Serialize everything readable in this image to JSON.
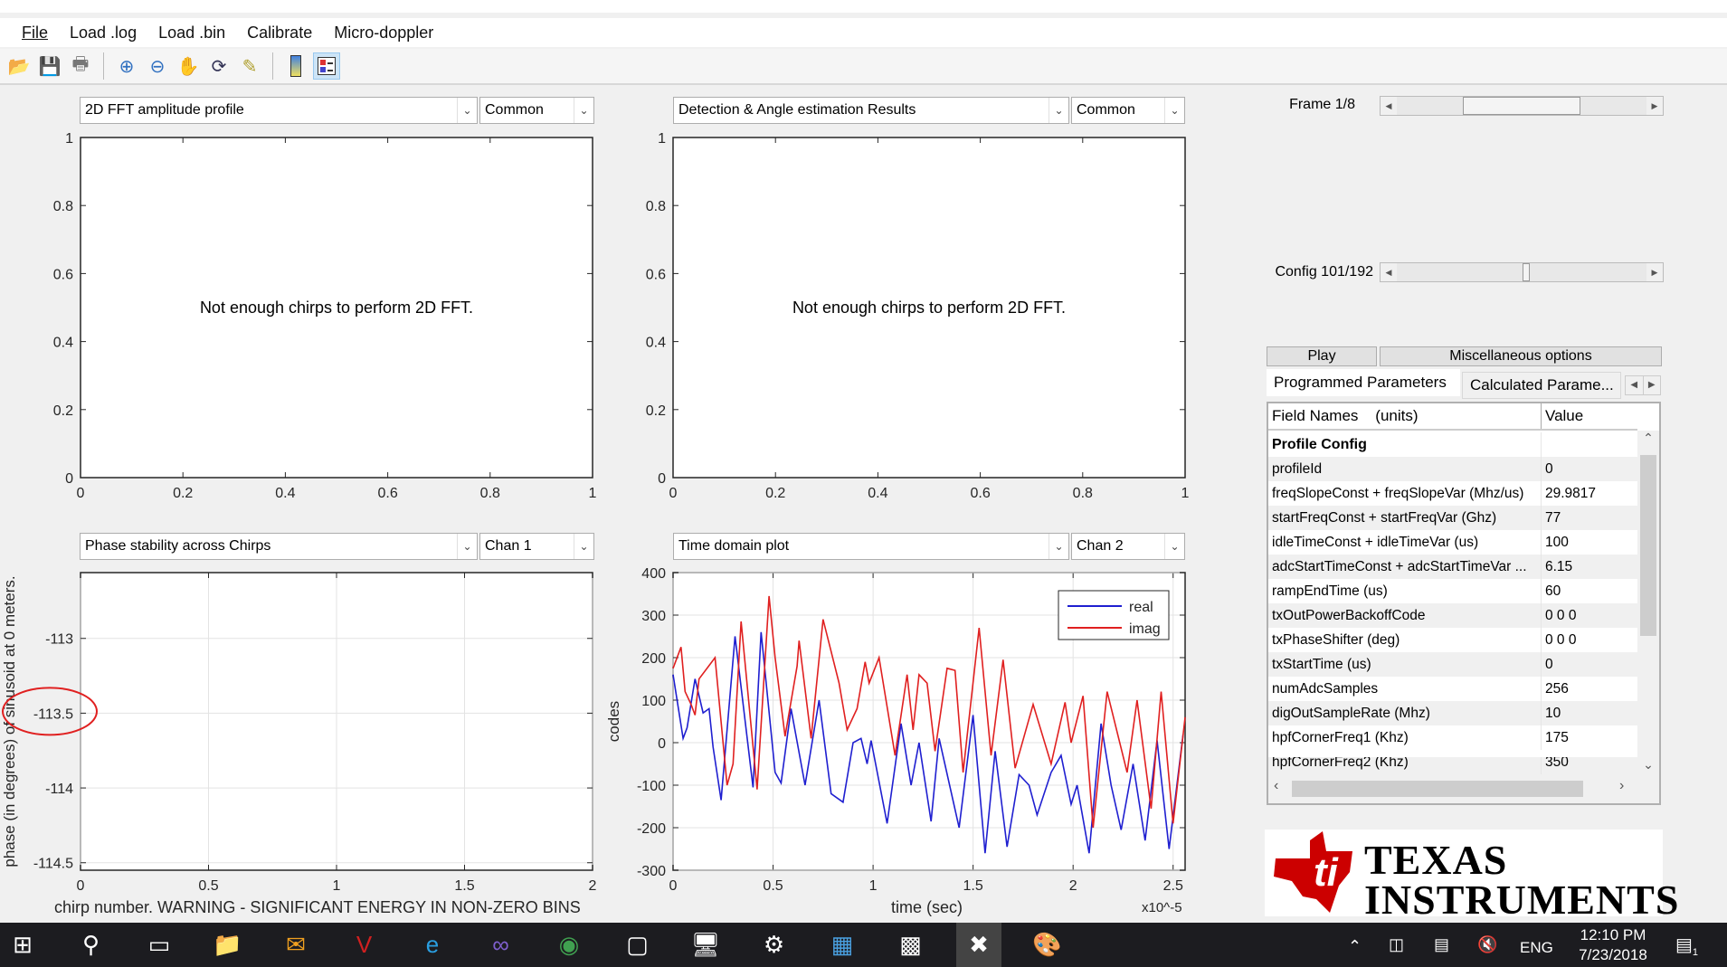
{
  "menu": [
    "File",
    "Load .log",
    "Load .bin",
    "Calibrate",
    "Micro-doppler"
  ],
  "toolbar": [
    "open-icon",
    "save-icon",
    "print-icon",
    "zoom-in-icon",
    "zoom-out-icon",
    "pan-icon",
    "rotate-icon",
    "data-cursor-icon",
    "colorbar-icon",
    "legend-icon"
  ],
  "plots": [
    {
      "select": "2D FFT amplitude profile",
      "option": "Common",
      "message": "Not enough chirps to perform 2D FFT."
    },
    {
      "select": "Detection & Angle estimation Results",
      "option": "Common",
      "message": "Not enough chirps to perform 2D FFT."
    },
    {
      "select": "Phase stability across Chirps",
      "option": "Chan 1"
    },
    {
      "select": "Time domain plot",
      "option": "Chan 2"
    }
  ],
  "chart_data": [
    {
      "type": "line",
      "xlim": [
        0,
        1
      ],
      "ylim": [
        0,
        1
      ],
      "xticks": [
        "0",
        "0.2",
        "0.4",
        "0.6",
        "0.8",
        "1"
      ],
      "yticks": [
        "0",
        "0.2",
        "0.4",
        "0.6",
        "0.8",
        "1"
      ],
      "grid": false,
      "series": []
    },
    {
      "type": "line",
      "xlim": [
        0,
        1
      ],
      "ylim": [
        0,
        1
      ],
      "xticks": [
        "0",
        "0.2",
        "0.4",
        "0.6",
        "0.8",
        "1"
      ],
      "yticks": [
        "0",
        "0.2",
        "0.4",
        "0.6",
        "0.8",
        "1"
      ],
      "grid": false,
      "series": []
    },
    {
      "type": "line",
      "xlim": [
        0,
        2
      ],
      "ylim": [
        -114.55,
        -112.56
      ],
      "xticks": [
        "0",
        "0.5",
        "1",
        "1.5",
        "2"
      ],
      "xtick_values": [
        0,
        0.5,
        1,
        1.5,
        2
      ],
      "yticks": [
        "-113",
        "-113.5",
        "-114",
        "-114.5"
      ],
      "ytick_values": [
        -113,
        -113.5,
        -114,
        -114.5
      ],
      "grid": true,
      "ylabel": "phase (in degrees) of sinusoid at 0 meters.",
      "xlabel": "chirp number. WARNING - SIGNIFICANT ENERGY IN NON-ZERO BINS",
      "series": [],
      "annotation_color": "#e02020"
    },
    {
      "type": "line",
      "xlim": [
        0,
        2.56
      ],
      "ylim": [
        -300,
        400
      ],
      "xticks": [
        "0",
        "0.5",
        "1",
        "1.5",
        "2",
        "2.5"
      ],
      "xtick_values": [
        0,
        0.5,
        1,
        1.5,
        2,
        2.5
      ],
      "yticks": [
        "400",
        "300",
        "200",
        "100",
        "0",
        "-100",
        "-200",
        "-300"
      ],
      "ytick_values": [
        400,
        300,
        200,
        100,
        0,
        -100,
        -200,
        -300
      ],
      "grid": true,
      "ylabel": "codes",
      "xlabel": "time (sec)",
      "xscale_label": "x10^-5",
      "legend": "top-right",
      "series": [
        {
          "name": "real",
          "color": "#1f1fd0",
          "x": [
            0,
            0.05,
            0.07,
            0.11,
            0.15,
            0.18,
            0.2,
            0.24,
            0.31,
            0.4,
            0.44,
            0.51,
            0.54,
            0.59,
            0.66,
            0.73,
            0.79,
            0.85,
            0.9,
            0.94,
            0.97,
            0.99,
            1.07,
            1.14,
            1.19,
            1.23,
            1.29,
            1.33,
            1.43,
            1.5,
            1.56,
            1.61,
            1.67,
            1.73,
            1.78,
            1.82,
            1.89,
            1.94,
            1.99,
            2.02,
            2.08,
            2.14,
            2.19,
            2.24,
            2.3,
            2.36,
            2.42,
            2.48,
            2.55
          ],
          "y": [
            160,
            10,
            35,
            150,
            70,
            80,
            -10,
            -135,
            250,
            -105,
            260,
            -70,
            -95,
            80,
            -100,
            100,
            -120,
            -140,
            0,
            10,
            -50,
            5,
            -190,
            45,
            -100,
            0,
            -185,
            10,
            -200,
            65,
            -260,
            -20,
            -245,
            -75,
            -100,
            -170,
            -70,
            -30,
            -145,
            -100,
            -260,
            45,
            -100,
            -205,
            -50,
            -230,
            5,
            -250,
            20
          ]
        },
        {
          "name": "imag",
          "color": "#e02020",
          "x": [
            0,
            0.04,
            0.06,
            0.09,
            0.11,
            0.13,
            0.21,
            0.27,
            0.3,
            0.34,
            0.42,
            0.48,
            0.51,
            0.56,
            0.62,
            0.63,
            0.69,
            0.75,
            0.83,
            0.87,
            0.92,
            0.96,
            0.98,
            1.03,
            1.11,
            1.17,
            1.2,
            1.23,
            1.27,
            1.31,
            1.37,
            1.41,
            1.45,
            1.53,
            1.59,
            1.65,
            1.71,
            1.8,
            1.89,
            1.96,
            1.99,
            2.05,
            2.1,
            2.17,
            2.27,
            2.32,
            2.39,
            2.44,
            2.5,
            2.56
          ],
          "y": [
            175,
            225,
            120,
            90,
            65,
            150,
            200,
            -100,
            -50,
            285,
            -110,
            345,
            200,
            15,
            180,
            240,
            10,
            290,
            140,
            30,
            80,
            190,
            140,
            200,
            -30,
            160,
            30,
            160,
            140,
            -20,
            175,
            170,
            -70,
            270,
            -30,
            195,
            -60,
            90,
            -50,
            95,
            0,
            110,
            -200,
            120,
            -70,
            100,
            -155,
            120,
            -190,
            60
          ]
        }
      ]
    }
  ],
  "right": {
    "frame_label": "Frame 1/8",
    "frame_position": 0.5,
    "config_label": "Config 101/192",
    "config_position": 0.52,
    "play": "Play",
    "misc": "Miscellaneous options",
    "tabs": [
      "Programmed Parameters",
      "Calculated Parame..."
    ],
    "table": {
      "headers": [
        "Field Names    (units)",
        "Value"
      ],
      "section": "Profile Config",
      "rows": [
        [
          "profileId",
          "0"
        ],
        [
          "freqSlopeConst + freqSlopeVar (Mhz/us)",
          "29.9817"
        ],
        [
          "startFreqConst + startFreqVar (Ghz)",
          "77"
        ],
        [
          "idleTimeConst + idleTimeVar (us)",
          "100"
        ],
        [
          "adcStartTimeConst + adcStartTimeVar ...",
          "6.15"
        ],
        [
          "rampEndTime (us)",
          "60"
        ],
        [
          "txOutPowerBackoffCode",
          "0 0 0"
        ],
        [
          "txPhaseShifter (deg)",
          "0 0 0"
        ],
        [
          "txStartTime (us)",
          "0"
        ],
        [
          "numAdcSamples",
          "256"
        ],
        [
          "digOutSampleRate (Mhz)",
          "10"
        ],
        [
          "hpfCornerFreq1 (Khz)",
          "175"
        ],
        [
          "hpfCornerFreq2 (Khz)",
          "350"
        ]
      ]
    },
    "logo": {
      "line1": "TEXAS",
      "line2": "INSTRUMENTS",
      "color": "#cc0000"
    }
  },
  "taskbar": {
    "icons": [
      "windows-start-icon",
      "search-icon",
      "task-view-icon",
      "file-explorer-icon",
      "outlook-icon",
      "vnc-icon",
      "internet-explorer-icon",
      "visual-studio-icon",
      "chrome-icon",
      "box-app-icon",
      "network-app-icon",
      "settings-icon",
      "control-panel-icon",
      "terminal-icon",
      "matlab-tool-icon",
      "paint-icon"
    ],
    "lang": "ENG",
    "time": "12:10 PM",
    "date": "7/23/2018",
    "notifications": "1"
  }
}
